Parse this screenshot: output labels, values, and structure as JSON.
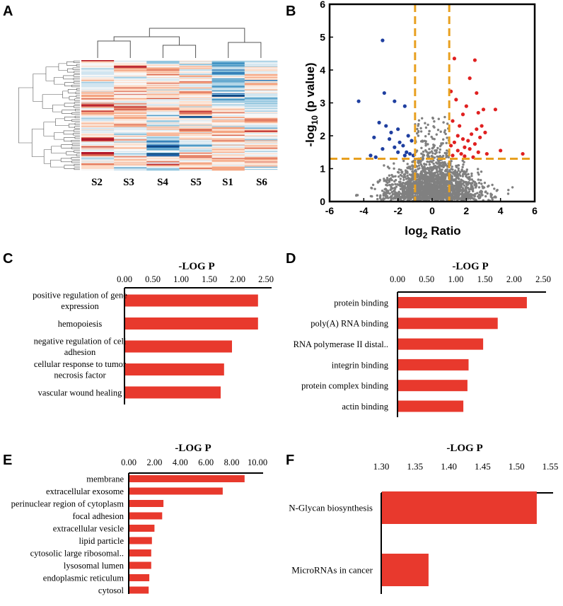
{
  "figure": {
    "panel_letters": [
      "A",
      "B",
      "C",
      "D",
      "E",
      "F"
    ],
    "heatmap_colors": {
      "deep_red": "#b2182b",
      "red": "#d6604d",
      "salmon": "#f4a582",
      "peach": "#fddbc7",
      "white": "#f7f7f7",
      "pale_blue": "#d1e5f0",
      "light_blue": "#92c5de",
      "mid_blue": "#4393c3",
      "deep_blue": "#2166ac",
      "navy": "#053061"
    },
    "bar_color": "#e8392d",
    "volcano_colors": {
      "up": "#e02020",
      "down": "#1f3fa0",
      "ns": "#808080",
      "threshold": "#e8a020"
    }
  },
  "chart_data": [
    {
      "type": "heatmap",
      "panel": "A",
      "columns": [
        "S2",
        "S3",
        "S4",
        "S5",
        "S1",
        "S6"
      ]
    },
    {
      "type": "scatter",
      "panel": "B",
      "xlabel": "log",
      "xlabel_sub": "2",
      "xlabel_tail": " Ratio",
      "ylabel": "-log",
      "ylabel_sub": "10",
      "ylabel_tail": " (p value)",
      "xlim": [
        -6,
        6
      ],
      "ylim": [
        0,
        6
      ],
      "xticks": [
        "-6",
        "-4",
        "-2",
        "0",
        "2",
        "4",
        "6"
      ],
      "yticks": [
        "0",
        "1",
        "2",
        "3",
        "4",
        "5",
        "6"
      ],
      "thresholds": {
        "x": [
          -1,
          1
        ],
        "y": 1.3
      },
      "down_points": [
        [
          -2.9,
          4.9
        ],
        [
          -4.3,
          3.05
        ],
        [
          -2.8,
          3.3
        ],
        [
          -2.2,
          3.05
        ],
        [
          -1.6,
          2.9
        ],
        [
          -3.1,
          2.4
        ],
        [
          -2.7,
          2.3
        ],
        [
          -2.0,
          2.2
        ],
        [
          -2.4,
          2.1
        ],
        [
          -1.4,
          2.0
        ],
        [
          -3.4,
          1.95
        ],
        [
          -2.5,
          1.9
        ],
        [
          -1.9,
          1.8
        ],
        [
          -1.2,
          1.85
        ],
        [
          -1.7,
          1.7
        ],
        [
          -2.2,
          1.65
        ],
        [
          -3.6,
          1.4
        ],
        [
          -2.9,
          1.6
        ],
        [
          -1.5,
          1.5
        ],
        [
          -1.3,
          1.45
        ],
        [
          -2.0,
          1.5
        ],
        [
          -3.3,
          1.35
        ],
        [
          -1.6,
          1.4
        ],
        [
          -1.1,
          1.4
        ]
      ],
      "up_points": [
        [
          1.3,
          4.35
        ],
        [
          2.5,
          4.3
        ],
        [
          2.2,
          3.75
        ],
        [
          1.1,
          3.35
        ],
        [
          2.6,
          3.3
        ],
        [
          1.4,
          3.1
        ],
        [
          2.0,
          2.9
        ],
        [
          3.0,
          2.8
        ],
        [
          3.7,
          2.8
        ],
        [
          1.8,
          2.65
        ],
        [
          2.7,
          2.7
        ],
        [
          1.2,
          2.45
        ],
        [
          1.6,
          2.3
        ],
        [
          2.9,
          2.3
        ],
        [
          2.6,
          2.2
        ],
        [
          3.1,
          2.1
        ],
        [
          1.5,
          2.0
        ],
        [
          2.3,
          2.05
        ],
        [
          1.8,
          1.9
        ],
        [
          2.1,
          1.85
        ],
        [
          2.8,
          1.95
        ],
        [
          1.3,
          1.8
        ],
        [
          2.5,
          1.75
        ],
        [
          1.1,
          1.7
        ],
        [
          1.9,
          1.65
        ],
        [
          2.2,
          1.6
        ],
        [
          1.5,
          1.55
        ],
        [
          2.7,
          1.5
        ],
        [
          1.7,
          1.45
        ],
        [
          3.2,
          1.45
        ],
        [
          4.0,
          1.55
        ],
        [
          5.3,
          1.45
        ],
        [
          1.2,
          1.4
        ],
        [
          2.4,
          1.35
        ],
        [
          1.9,
          1.38
        ]
      ]
    },
    {
      "type": "bar",
      "panel": "C",
      "title": "-LOG P",
      "xlim": [
        0,
        2.5
      ],
      "xticks": [
        "0.00",
        "0.50",
        "1.00",
        "1.50",
        "2.00",
        "2.50"
      ],
      "categories": [
        [
          "positive regulation of gene",
          "expression"
        ],
        [
          "hemopoiesis"
        ],
        [
          "negative regulation of cell",
          "adhesion"
        ],
        [
          "cellular response to tumor",
          "necrosis factor"
        ],
        [
          "vascular wound healing"
        ]
      ],
      "values": [
        2.36,
        2.36,
        1.9,
        1.76,
        1.7
      ]
    },
    {
      "type": "bar",
      "panel": "D",
      "title": "-LOG P",
      "xlim": [
        0,
        2.5
      ],
      "xticks": [
        "0.00",
        "0.50",
        "1.00",
        "1.50",
        "2.00",
        "2.50"
      ],
      "categories": [
        [
          "protein binding"
        ],
        [
          "poly(A) RNA binding"
        ],
        [
          "RNA polymerase II distal.."
        ],
        [
          "integrin binding"
        ],
        [
          "protein complex binding"
        ],
        [
          "actin binding"
        ]
      ],
      "values": [
        2.22,
        1.72,
        1.47,
        1.22,
        1.2,
        1.13
      ]
    },
    {
      "type": "bar",
      "panel": "E",
      "title": "-LOG P",
      "xlim": [
        0,
        10
      ],
      "xticks": [
        "0.00",
        "2.00",
        "4.00",
        "6.00",
        "8.00",
        "10.00"
      ],
      "categories": [
        [
          "membrane"
        ],
        [
          "extracellular exosome"
        ],
        [
          "perinuclear region of cytoplasm"
        ],
        [
          "focal adhesion"
        ],
        [
          "extracellular vesicle"
        ],
        [
          "lipid particle"
        ],
        [
          "cytosolic large ribosomal.."
        ],
        [
          "lysosomal lumen"
        ],
        [
          "endoplasmic reticulum"
        ],
        [
          "cytosol"
        ]
      ],
      "values": [
        9.0,
        7.3,
        2.7,
        2.6,
        2.0,
        1.8,
        1.75,
        1.75,
        1.6,
        1.55
      ]
    },
    {
      "type": "bar",
      "panel": "F",
      "title": "-LOG P",
      "xlim": [
        1.3,
        1.55
      ],
      "xticks": [
        "1.30",
        "1.35",
        "1.40",
        "1.45",
        "1.50",
        "1.55"
      ],
      "categories": [
        [
          "N-Glycan biosynthesis"
        ],
        [
          "MicroRNAs in cancer"
        ]
      ],
      "values": [
        1.53,
        1.37
      ]
    }
  ]
}
